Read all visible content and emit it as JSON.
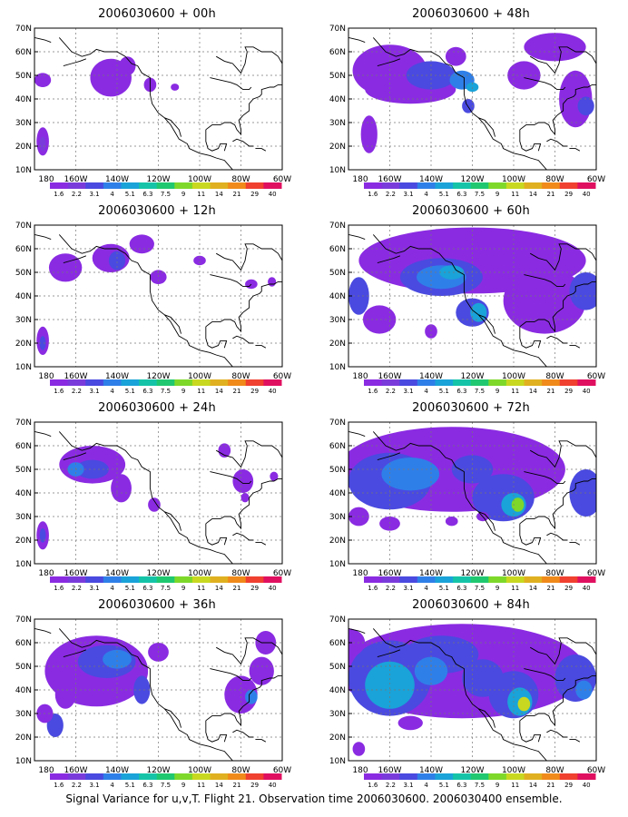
{
  "caption": "Signal Variance for u,v,T. Flight 21. Observation time 2006030600. 2006030400 ensemble.",
  "lat_labels": [
    "70N",
    "60N",
    "50N",
    "40N",
    "30N",
    "20N",
    "10N"
  ],
  "lon_labels": [
    "180",
    "160W",
    "140W",
    "120W",
    "100W",
    "80W",
    "60W"
  ],
  "colorbar": {
    "labels": [
      "1.6",
      "2.2",
      "3.1",
      "4",
      "5.1",
      "6.3",
      "7.5",
      "9",
      "11",
      "14",
      "21",
      "29",
      "40"
    ],
    "colors": [
      "#8a2be2",
      "#7a3bdb",
      "#4a4ae0",
      "#2f7fe8",
      "#1aa3d8",
      "#15c4a8",
      "#20c870",
      "#7ed82a",
      "#c8d820",
      "#e0b020",
      "#f08a1a",
      "#f04030",
      "#e01060"
    ]
  },
  "panels": [
    {
      "title": "2006030600 + 00h"
    },
    {
      "title": "2006030600 + 48h"
    },
    {
      "title": "2006030600 + 12h"
    },
    {
      "title": "2006030600 + 60h"
    },
    {
      "title": "2006030600 + 24h"
    },
    {
      "title": "2006030600 + 72h"
    },
    {
      "title": "2006030600 + 36h"
    },
    {
      "title": "2006030600 + 84h"
    }
  ]
}
